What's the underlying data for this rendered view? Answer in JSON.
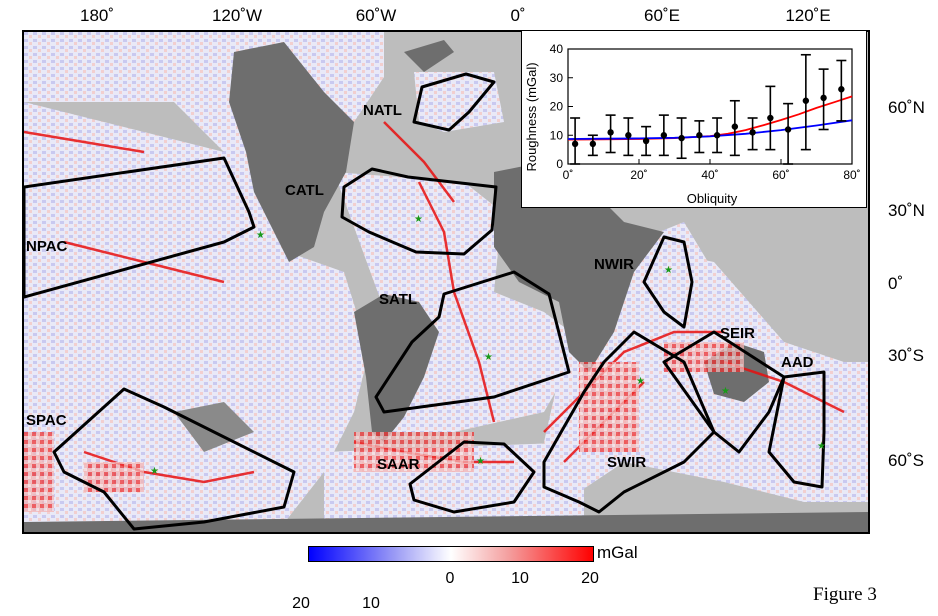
{
  "lon_ticks": [
    "180˚",
    "120˚W",
    "60˚W",
    "0˚",
    "60˚E",
    "120˚E"
  ],
  "lat_ticks": [
    "60˚N",
    "30˚N",
    "0˚",
    "30˚S",
    "60˚S"
  ],
  "regions": {
    "natl": "NATL",
    "catl": "CATL",
    "npac": "NPAC",
    "satl": "SATL",
    "nwir": "NWIR",
    "seir": "SEIR",
    "aad": "AAD",
    "spac": "SPAC",
    "saar": "SAAR",
    "swir": "SWIR"
  },
  "colorbar": {
    "unit": "mGal",
    "labels": [
      "0",
      "10",
      "20"
    ],
    "lower_labels": [
      "20",
      "10"
    ],
    "colors": [
      "#0000ff",
      "#ffffff",
      "#ff0000"
    ]
  },
  "figure_label": "Figure 3",
  "chart_data": {
    "type": "scatter",
    "xlabel": "Obliquity",
    "ylabel": "Roughness (mGal)",
    "xlim": [
      0,
      80
    ],
    "ylim": [
      0,
      40
    ],
    "x_ticks": [
      "0˚",
      "20˚",
      "40˚",
      "60˚",
      "80˚"
    ],
    "y_ticks": [
      "0",
      "10",
      "20",
      "30",
      "40"
    ],
    "points": [
      {
        "x": 2,
        "y": 7,
        "lo": 0,
        "hi": 16
      },
      {
        "x": 7,
        "y": 7,
        "lo": 3,
        "hi": 10
      },
      {
        "x": 12,
        "y": 11,
        "lo": 4,
        "hi": 17
      },
      {
        "x": 17,
        "y": 10,
        "lo": 3,
        "hi": 16
      },
      {
        "x": 22,
        "y": 8,
        "lo": 3,
        "hi": 13
      },
      {
        "x": 27,
        "y": 10,
        "lo": 3,
        "hi": 17
      },
      {
        "x": 32,
        "y": 9,
        "lo": 2,
        "hi": 16
      },
      {
        "x": 37,
        "y": 10,
        "lo": 4,
        "hi": 15
      },
      {
        "x": 42,
        "y": 10,
        "lo": 4,
        "hi": 16
      },
      {
        "x": 47,
        "y": 13,
        "lo": 3,
        "hi": 22
      },
      {
        "x": 52,
        "y": 11,
        "lo": 5,
        "hi": 16
      },
      {
        "x": 57,
        "y": 16,
        "lo": 5,
        "hi": 27
      },
      {
        "x": 62,
        "y": 12,
        "lo": 0,
        "hi": 21
      },
      {
        "x": 67,
        "y": 22,
        "lo": 5,
        "hi": 38
      },
      {
        "x": 72,
        "y": 23,
        "lo": 12,
        "hi": 33
      },
      {
        "x": 77,
        "y": 26,
        "lo": 15,
        "hi": 36
      }
    ],
    "fits": [
      {
        "color": "#ff0000",
        "x": [
          0,
          10,
          20,
          30,
          40,
          45,
          50,
          55,
          60,
          65,
          70,
          75,
          80
        ],
        "y": [
          8.5,
          8.6,
          8.7,
          9.0,
          9.7,
          10.5,
          11.8,
          13.5,
          15.3,
          17.3,
          19.5,
          21.5,
          23.5
        ]
      },
      {
        "color": "#0000ff",
        "x": [
          0,
          10,
          20,
          30,
          40,
          50,
          60,
          70,
          80
        ],
        "y": [
          8.7,
          8.8,
          8.9,
          9.1,
          9.6,
          10.5,
          11.8,
          13.4,
          15.2
        ]
      }
    ]
  }
}
